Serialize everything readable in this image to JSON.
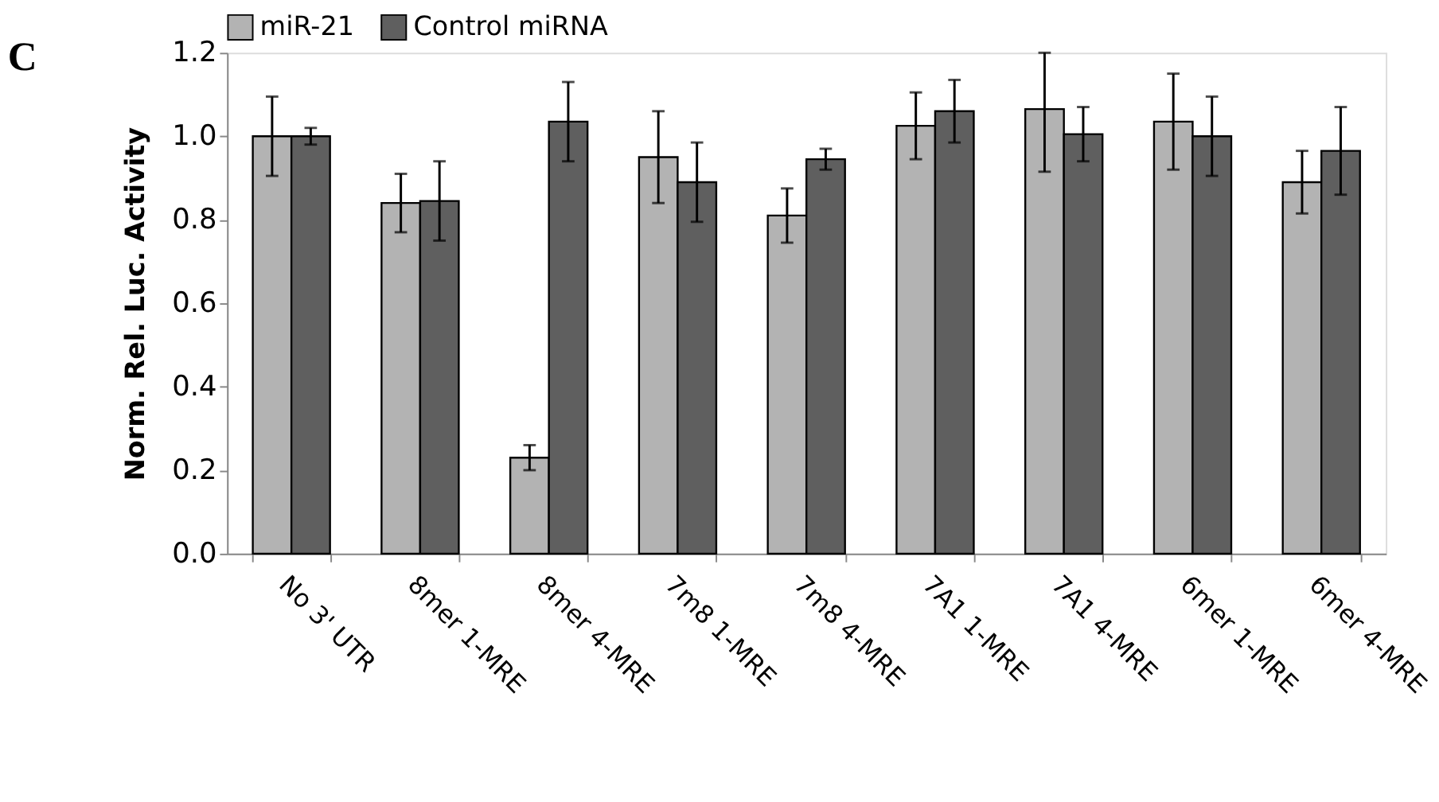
{
  "chart_data": {
    "type": "bar",
    "ylabel": "Norm. Rel. Luc. Activity",
    "annotations": [
      "C"
    ],
    "categories": [
      "No 3' UTR",
      "8mer 1-MRE",
      "8mer 4-MRE",
      "7m8 1-MRE",
      "7m8 4-MRE",
      "7A1 1-MRE",
      "7A1 4-MRE",
      "6mer 1-MRE",
      "6mer 4-MRE"
    ],
    "series": [
      {
        "name": "miR-21",
        "color": "#b3b3b3",
        "values": [
          1.0,
          0.84,
          0.23,
          0.95,
          0.81,
          1.025,
          1.065,
          1.035,
          0.89
        ],
        "errors": [
          0.095,
          0.07,
          0.03,
          0.11,
          0.065,
          0.08,
          [
            0.915,
            1.2
          ],
          0.115,
          0.075
        ]
      },
      {
        "name": "Control miRNA",
        "color": "#5f5f5f",
        "values": [
          1.0,
          0.845,
          1.035,
          0.89,
          0.945,
          1.06,
          1.005,
          1.0,
          0.965
        ],
        "errors": [
          0.02,
          0.095,
          0.095,
          0.095,
          0.025,
          0.075,
          0.065,
          0.095,
          0.105
        ]
      }
    ],
    "ylim": [
      0,
      1.2
    ],
    "yticks": [
      {
        "value": 0,
        "label": "0.0"
      },
      {
        "value": 0.2,
        "label": "0.2"
      },
      {
        "value": 0.4,
        "label": "0.4"
      },
      {
        "value": 0.6,
        "label": "0.6"
      },
      {
        "value": 0.8,
        "label": "0.8"
      },
      {
        "value": 1.0,
        "label": "1.0"
      },
      {
        "value": 1.2,
        "label": "1.2"
      }
    ],
    "grid": false,
    "legend": "top"
  }
}
